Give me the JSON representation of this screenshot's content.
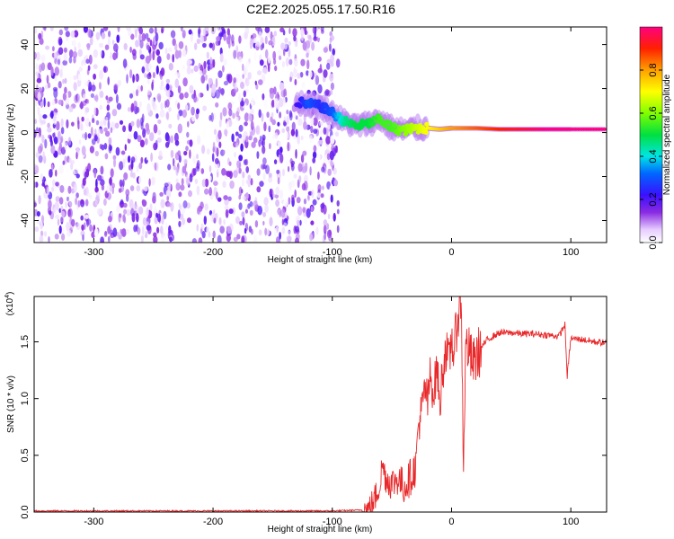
{
  "title": "C2E2.2025.055.17.50.R16",
  "chart_data": [
    {
      "type": "heatmap",
      "xlabel": "Height of straight line (km)",
      "ylabel": "Frequency (Hz)",
      "xlim": [
        -350,
        130
      ],
      "ylim": [
        -50,
        48
      ],
      "xticks": [
        -300,
        -200,
        -100,
        0,
        100
      ],
      "yticks": [
        -40,
        -20,
        0,
        20,
        40
      ],
      "xtick_labels": [
        "-300",
        "-200",
        "-100",
        "0",
        "100"
      ],
      "ytick_labels": [
        "-40",
        "-20",
        "0",
        "20",
        "40"
      ],
      "colorbar": {
        "label": "Normalized spectral amplitude",
        "range": [
          0.0,
          1.0
        ],
        "ticks": [
          0.0,
          0.2,
          0.4,
          0.6,
          0.8
        ],
        "tick_labels": [
          "0.0",
          "0.2",
          "0.4",
          "0.6",
          "0.8"
        ]
      },
      "regions": {
        "noise_x_range": [
          -350,
          -95
        ],
        "noise_freq_range": [
          -50,
          48
        ],
        "noise_amplitude_range": [
          0.0,
          0.2
        ],
        "signal_track": [
          {
            "x": -130,
            "f": 14,
            "a": 0.2
          },
          {
            "x": -120,
            "f": 13,
            "a": 0.3
          },
          {
            "x": -110,
            "f": 12,
            "a": 0.25
          },
          {
            "x": -100,
            "f": 9,
            "a": 0.3
          },
          {
            "x": -90,
            "f": 5,
            "a": 0.45
          },
          {
            "x": -80,
            "f": 3,
            "a": 0.5
          },
          {
            "x": -70,
            "f": 4,
            "a": 0.5
          },
          {
            "x": -60,
            "f": 6,
            "a": 0.55
          },
          {
            "x": -50,
            "f": 2,
            "a": 0.55
          },
          {
            "x": -40,
            "f": 1,
            "a": 0.6
          },
          {
            "x": -30,
            "f": 2,
            "a": 0.65
          },
          {
            "x": -20,
            "f": 2,
            "a": 0.7
          },
          {
            "x": -10,
            "f": 1.5,
            "a": 0.75
          },
          {
            "x": 0,
            "f": 2,
            "a": 0.8
          },
          {
            "x": 20,
            "f": 2,
            "a": 0.85
          },
          {
            "x": 40,
            "f": 1.5,
            "a": 0.9
          },
          {
            "x": 60,
            "f": 1.5,
            "a": 0.95
          },
          {
            "x": 80,
            "f": 1.5,
            "a": 1.0
          },
          {
            "x": 100,
            "f": 1.5,
            "a": 1.0
          },
          {
            "x": 130,
            "f": 1.5,
            "a": 1.0
          }
        ]
      }
    },
    {
      "type": "line",
      "xlabel": "Height of straight line (km)",
      "ylabel": "SNR (10 * v/v)",
      "yscale_label": "(x10",
      "yscale_exponent": "4",
      "xlim": [
        -350,
        130
      ],
      "ylim": [
        0.0,
        1.9
      ],
      "xticks": [
        -300,
        -200,
        -100,
        0,
        100
      ],
      "yticks": [
        0.0,
        0.5,
        1.0,
        1.5
      ],
      "xtick_labels": [
        "-300",
        "-200",
        "-100",
        "0",
        "100"
      ],
      "ytick_labels": [
        "0.0",
        "0.5",
        "1.0",
        "1.5"
      ],
      "series": [
        {
          "color": "#e8282a",
          "x": [
            -350,
            -300,
            -200,
            -100,
            -70,
            -65,
            -60,
            -58,
            -55,
            -50,
            -45,
            -40,
            -35,
            -30,
            -28,
            -25,
            -22,
            -20,
            -18,
            -15,
            -12,
            -10,
            -8,
            -5,
            -2,
            0,
            2,
            5,
            8,
            10,
            12,
            15,
            18,
            20,
            25,
            30,
            35,
            40,
            50,
            60,
            70,
            80,
            90,
            95,
            97,
            100,
            110,
            120,
            130
          ],
          "y": [
            0.01,
            0.01,
            0.01,
            0.01,
            0.02,
            0.1,
            0.25,
            0.42,
            0.3,
            0.25,
            0.3,
            0.22,
            0.3,
            0.4,
            0.75,
            0.9,
            1.1,
            0.95,
            1.2,
            1.05,
            1.3,
            0.9,
            1.2,
            1.45,
            1.3,
            1.55,
            1.4,
            1.7,
            1.9,
            0.45,
            1.5,
            1.4,
            1.3,
            1.35,
            1.45,
            1.52,
            1.55,
            1.58,
            1.58,
            1.57,
            1.57,
            1.56,
            1.55,
            1.65,
            1.2,
            1.53,
            1.52,
            1.5,
            1.49
          ]
        }
      ]
    }
  ]
}
